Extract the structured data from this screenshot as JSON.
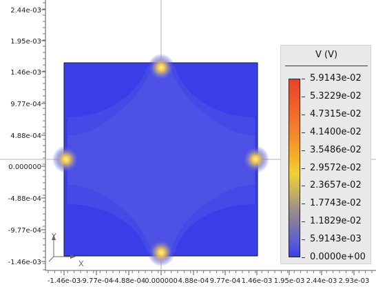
{
  "y_axis_labels": [
    "2.44e-03",
    "1.95e-03",
    "1.46e-03",
    "9.77e-04",
    "4.88e-04",
    "0.000000",
    "-4.88e-04",
    "-9.77e-04",
    "-1.46e-03"
  ],
  "x_axis_labels": [
    "-1.46e-03",
    "-9.77e-04",
    "-4.88e-04",
    "0.000000",
    "4.88e-04",
    "9.77e-04",
    "1.46e-03",
    "1.95e-03",
    "2.44e-03",
    "2.93e-03"
  ],
  "triad": {
    "x": "X",
    "y": "Y"
  },
  "legend": {
    "title": "V (V)",
    "values": [
      "5.9143e-02",
      "5.3229e-02",
      "4.7315e-02",
      "4.1400e-02",
      "3.5486e-02",
      "2.9572e-02",
      "2.3657e-02",
      "1.7743e-02",
      "1.1829e-02",
      "5.9143e-03",
      "0.0000e+00"
    ]
  },
  "colors": {
    "field": "#3a3ee8",
    "hotspot": "#f3dc3c",
    "axis": "#b4b4b4"
  }
}
